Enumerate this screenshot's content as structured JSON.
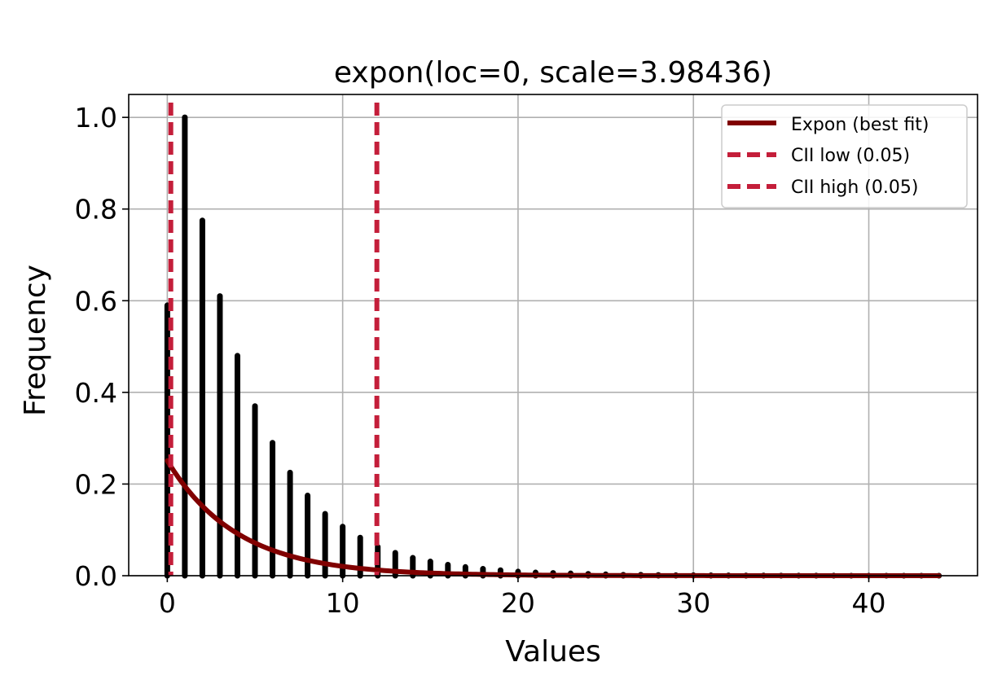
{
  "chart_data": {
    "type": "bar",
    "title": "expon(loc=0, scale=3.98436)",
    "xlabel": "Values",
    "ylabel": "Frequency",
    "xlim": [
      -2.2,
      46.2
    ],
    "ylim": [
      0,
      1.05
    ],
    "xticks": [
      0,
      10,
      20,
      30,
      40
    ],
    "xtick_labels": [
      "0",
      "10",
      "20",
      "30",
      "40"
    ],
    "yticks": [
      0.0,
      0.2,
      0.4,
      0.6,
      0.8,
      1.0
    ],
    "ytick_labels": [
      "0.0",
      "0.2",
      "0.4",
      "0.6",
      "0.8",
      "1.0"
    ],
    "grid": true,
    "legend_position": "top-right",
    "bars": {
      "x": [
        0,
        1,
        2,
        3,
        4,
        5,
        6,
        7,
        8,
        9,
        10,
        11,
        12,
        13,
        14,
        15,
        16,
        17,
        18,
        19,
        20,
        21,
        22,
        23,
        24,
        25,
        26,
        27,
        28,
        29,
        30,
        31,
        32,
        33,
        34,
        35,
        36,
        37,
        38,
        39,
        40,
        41,
        42,
        43,
        44
      ],
      "values": [
        0.59,
        1.0,
        0.775,
        0.61,
        0.48,
        0.37,
        0.29,
        0.225,
        0.175,
        0.135,
        0.107,
        0.083,
        0.063,
        0.05,
        0.039,
        0.031,
        0.024,
        0.019,
        0.015,
        0.012,
        0.009,
        0.007,
        0.006,
        0.005,
        0.004,
        0.003,
        0.002,
        0.002,
        0.0015,
        0.001,
        0.001,
        0.0008,
        0.0006,
        0.0005,
        0.0004,
        0.0003,
        0.0003,
        0.0002,
        0.0002,
        0.0001,
        0.0001,
        0.0001,
        0.0001,
        0.0001,
        0.0001
      ],
      "color": "#000000"
    },
    "series": [
      {
        "name": "Expon (best fit)",
        "kind": "line",
        "loc": 0,
        "scale": 3.98436,
        "x_range": [
          0,
          44
        ],
        "color": "#800000"
      }
    ],
    "vlines": [
      {
        "name": "CII low (0.05)",
        "x": 0.2,
        "color": "#c41e3a"
      },
      {
        "name": "CII high (0.05)",
        "x": 11.95,
        "color": "#c41e3a"
      }
    ],
    "legend": [
      "Expon (best fit)",
      "CII low (0.05)",
      "CII high (0.05)"
    ]
  }
}
